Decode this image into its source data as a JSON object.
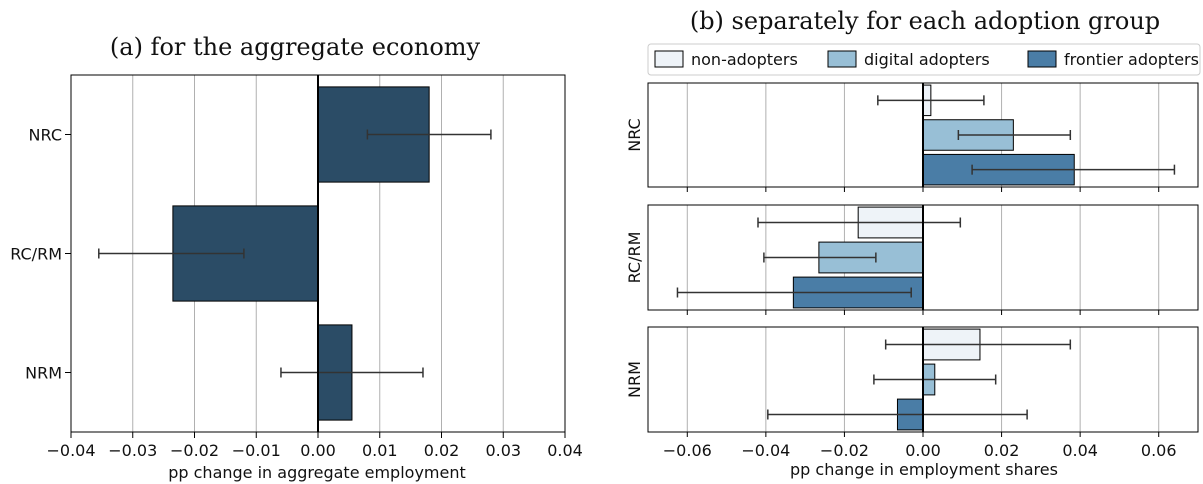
{
  "colors": {
    "aggregate": "#2b4c66",
    "non_adopters": "#eef3f8",
    "digital_adopters": "#98bfd6",
    "frontier_adopters": "#4a7da6",
    "grid": "#b0b0b0",
    "axis": "#000000"
  },
  "chart_data": [
    {
      "type": "bar",
      "orientation": "horizontal",
      "title": "(a) for the aggregate economy",
      "xlabel": "pp change in aggregate employment",
      "ylabel": "",
      "xlim": [
        -0.04,
        0.04
      ],
      "xticks": [
        -0.04,
        -0.03,
        -0.02,
        -0.01,
        0.0,
        0.01,
        0.02,
        0.03,
        0.04
      ],
      "xtick_labels": [
        "−0.04",
        "−0.03",
        "−0.02",
        "−0.01",
        "0.00",
        "0.01",
        "0.02",
        "0.03",
        "0.04"
      ],
      "grid": "x",
      "categories": [
        "NRC",
        "RC/RM",
        "NRM"
      ],
      "values": [
        0.018,
        -0.0235,
        0.0055
      ],
      "ci_low": [
        0.008,
        -0.0355,
        -0.006
      ],
      "ci_high": [
        0.028,
        -0.012,
        0.017
      ]
    },
    {
      "type": "bar",
      "orientation": "horizontal",
      "title": "(b) separately for each adoption group",
      "xlabel": "pp change in employment shares",
      "ylabel": "",
      "xlim": [
        -0.07,
        0.07
      ],
      "xticks": [
        -0.06,
        -0.04,
        -0.02,
        0.0,
        0.02,
        0.04,
        0.06
      ],
      "xtick_labels": [
        "−0.06",
        "−0.04",
        "−0.02",
        "0.00",
        "0.02",
        "0.04",
        "0.06"
      ],
      "grid": "x",
      "legend_position": "top",
      "panels": [
        "NRC",
        "RC/RM",
        "NRM"
      ],
      "series": [
        {
          "name": "non-adopters",
          "values": [
            0.002,
            -0.0165,
            0.0145
          ],
          "ci_low": [
            -0.0115,
            -0.042,
            -0.0095
          ],
          "ci_high": [
            0.0155,
            0.0095,
            0.0375
          ]
        },
        {
          "name": "digital adopters",
          "values": [
            0.023,
            -0.0265,
            0.003
          ],
          "ci_low": [
            0.009,
            -0.0405,
            -0.0125
          ],
          "ci_high": [
            0.0375,
            -0.012,
            0.0185
          ]
        },
        {
          "name": "frontier adopters",
          "values": [
            0.0385,
            -0.033,
            -0.0065
          ],
          "ci_low": [
            0.0125,
            -0.0625,
            -0.0395
          ],
          "ci_high": [
            0.064,
            -0.003,
            0.0265
          ]
        }
      ]
    }
  ]
}
